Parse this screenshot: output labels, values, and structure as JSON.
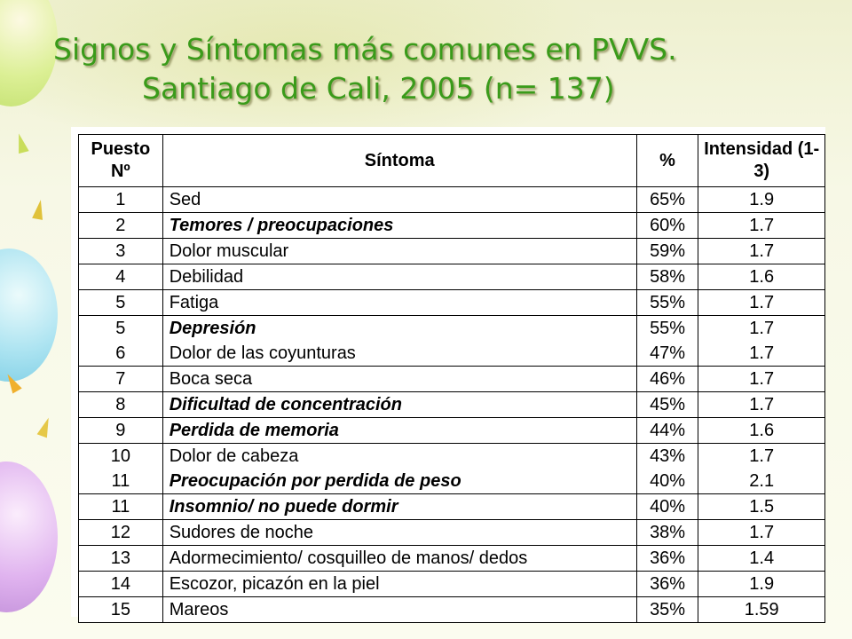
{
  "title": {
    "line1": "Signos y Síntomas más comunes en PVVS.",
    "line2": "Santiago de Cali, 2005 (n= 137)"
  },
  "table": {
    "headers": {
      "rank": "Puesto Nº",
      "symptom": "Síntoma",
      "percent": "%",
      "intensity": "Intensidad (1-3)"
    },
    "rows": [
      {
        "rank": "1",
        "symptom": "Sed",
        "percent": "65%",
        "intensity": "1.9",
        "italic": false
      },
      {
        "rank": "2",
        "symptom": "Temores / preocupaciones",
        "percent": "60%",
        "intensity": "1.7",
        "italic": true
      },
      {
        "rank": "3",
        "symptom": "Dolor muscular",
        "percent": "59%",
        "intensity": "1.7",
        "italic": false
      },
      {
        "rank": "4",
        "symptom": "Debilidad",
        "percent": "58%",
        "intensity": "1.6",
        "italic": false
      },
      {
        "rank": "5",
        "symptom": "Fatiga",
        "percent": "55%",
        "intensity": "1.7",
        "italic": false
      },
      {
        "rank": "5",
        "symptom": "Depresión",
        "percent": "55%",
        "intensity": "1.7",
        "italic": true
      },
      {
        "rank": "6",
        "symptom": "Dolor de las coyunturas",
        "percent": "47%",
        "intensity": "1.7",
        "italic": false
      },
      {
        "rank": "7",
        "symptom": "Boca seca",
        "percent": "46%",
        "intensity": "1.7",
        "italic": false
      },
      {
        "rank": "8",
        "symptom": "Dificultad de concentración",
        "percent": "45%",
        "intensity": "1.7",
        "italic": true
      },
      {
        "rank": "9",
        "symptom": "Perdida de memoria",
        "percent": "44%",
        "intensity": "1.6",
        "italic": true
      },
      {
        "rank": "10",
        "symptom": "Dolor de cabeza",
        "percent": "43%",
        "intensity": "1.7",
        "italic": false
      },
      {
        "rank": "11",
        "symptom": "Preocupación por perdida de peso",
        "percent": "40%",
        "intensity": "2.1",
        "italic": true
      },
      {
        "rank": "11",
        "symptom": "Insomnio/ no puede dormir",
        "percent": "40%",
        "intensity": "1.5",
        "italic": true
      },
      {
        "rank": "12",
        "symptom": "Sudores de noche",
        "percent": "38%",
        "intensity": "1.7",
        "italic": false
      },
      {
        "rank": "13",
        "symptom": "Adormecimiento/ cosquilleo de manos/ dedos",
        "percent": "36%",
        "intensity": "1.4",
        "italic": false
      },
      {
        "rank": "14",
        "symptom": "Escozor, picazón en la piel",
        "percent": "36%",
        "intensity": "1.9",
        "italic": false
      },
      {
        "rank": "15",
        "symptom": "Mareos",
        "percent": "35%",
        "intensity": "1.59",
        "italic": false
      }
    ]
  }
}
